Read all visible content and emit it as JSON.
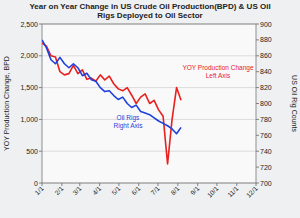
{
  "chart_data": {
    "type": "line",
    "title": "Year on Year Change in US Crude Oil Production(BPD) & US Oil Rigs Deployed to Oil Sector",
    "y_label": "YOY Production Change, BPD",
    "y2_label": "US Oil Rig Counts",
    "x": [
      1,
      8,
      15,
      22,
      29,
      36,
      43,
      50,
      57,
      64,
      71,
      78,
      85,
      92,
      99,
      106,
      113,
      120,
      127,
      134,
      141,
      148,
      155,
      162,
      169,
      176,
      183,
      190,
      197,
      204,
      211,
      218
    ],
    "xlim": [
      1,
      335
    ],
    "xticks": [
      {
        "value": 1,
        "label": "1/1"
      },
      {
        "value": 32,
        "label": "2/1"
      },
      {
        "value": 60,
        "label": "3/1"
      },
      {
        "value": 91,
        "label": "4/1"
      },
      {
        "value": 121,
        "label": "5/1"
      },
      {
        "value": 152,
        "label": "6/1"
      },
      {
        "value": 182,
        "label": "7/1"
      },
      {
        "value": 213,
        "label": "8/1"
      },
      {
        "value": 244,
        "label": "9/1"
      },
      {
        "value": 274,
        "label": "10/1"
      },
      {
        "value": 305,
        "label": "11/1"
      },
      {
        "value": 335,
        "label": "12/1"
      }
    ],
    "ylim": [
      0,
      2500
    ],
    "yticks": [
      0,
      500,
      {
        "value": 1000,
        "label": "1,000"
      },
      {
        "value": 1500,
        "label": "1,500"
      },
      {
        "value": 2000,
        "label": "2,000"
      },
      {
        "value": 2500,
        "label": "2,500"
      }
    ],
    "y2lim": [
      700,
      900
    ],
    "y2ticks": [
      700,
      720,
      740,
      760,
      780,
      800,
      820,
      840,
      860,
      880,
      900
    ],
    "grid": true,
    "series": [
      {
        "name": "YOY Production Change",
        "color": "#e8201e",
        "values": [
          2200,
          2150,
          2000,
          1980,
          1750,
          1700,
          1720,
          1850,
          1720,
          1780,
          1630,
          1650,
          1600,
          1700,
          1620,
          1680,
          1560,
          1480,
          1450,
          1500,
          1380,
          1250,
          1350,
          1400,
          1250,
          1300,
          1150,
          1050,
          300,
          1000,
          1500,
          1300
        ]
      },
      {
        "name": "Oil Rigs",
        "color": "#1f3fdc",
        "axis": "y2",
        "values": [
          880,
          870,
          855,
          850,
          858,
          850,
          845,
          850,
          845,
          835,
          838,
          830,
          828,
          820,
          815,
          816,
          810,
          805,
          808,
          800,
          795,
          798,
          790,
          788,
          786,
          782,
          778,
          775,
          772,
          768,
          762,
          770
        ]
      }
    ],
    "annotations": [
      {
        "lines": [
          "YOY Production Change",
          "Left Axis"
        ],
        "color": "#e8201e"
      },
      {
        "lines": [
          "Oil Rigs",
          "Right Axis"
        ],
        "color": "#1f3fdc"
      }
    ]
  }
}
